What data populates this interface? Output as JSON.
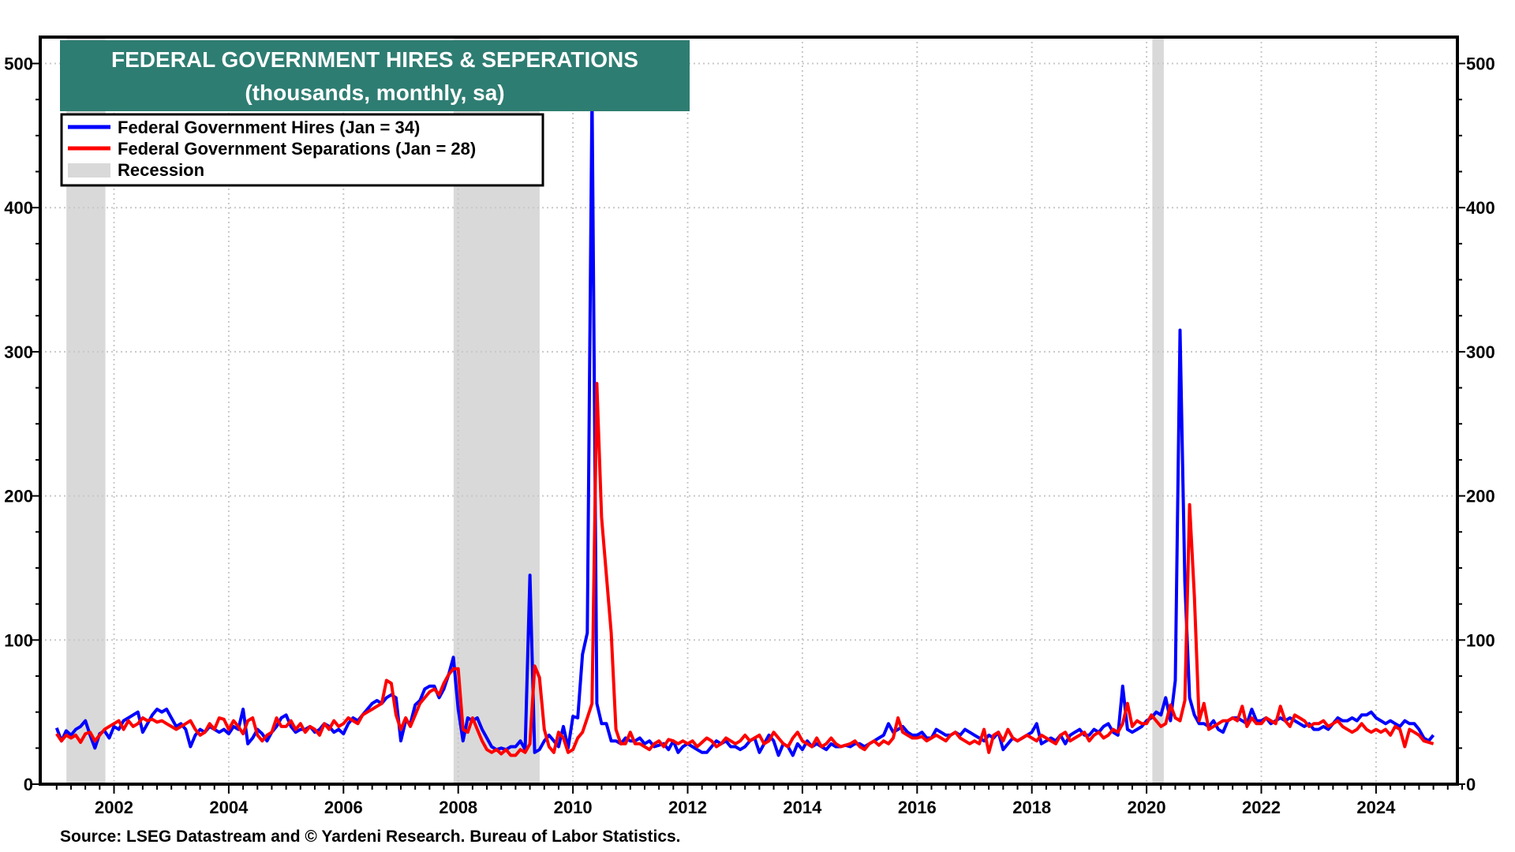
{
  "chart_data": {
    "type": "line",
    "title": "FEDERAL GOVERNMENT HIRES & SEPERATIONS",
    "subtitle": "(thousands, monthly, sa)",
    "source": "Source: LSEG Datastream and © Yardeni Research. Bureau of Labor Statistics.",
    "x_start": "2001-01",
    "frequency": "monthly",
    "ylim": [
      0,
      520
    ],
    "xlim": [
      2001,
      2025.6
    ],
    "y_ticks": [
      "0",
      "100",
      "200",
      "300",
      "400",
      "500"
    ],
    "y_tick_values": [
      0,
      100,
      200,
      300,
      400,
      500
    ],
    "x_ticks": [
      "2002",
      "2004",
      "2006",
      "2008",
      "2010",
      "2012",
      "2014",
      "2016",
      "2018",
      "2020",
      "2022",
      "2024"
    ],
    "x_tick_values": [
      2002,
      2004,
      2006,
      2008,
      2010,
      2012,
      2014,
      2016,
      2018,
      2020,
      2022,
      2024
    ],
    "grid": true,
    "legend_placement": "top-left",
    "recessions": [
      {
        "start": 2001.17,
        "end": 2001.85
      },
      {
        "start": 2007.92,
        "end": 2009.42
      },
      {
        "start": 2020.1,
        "end": 2020.3
      }
    ],
    "legend": {
      "hires": "Federal Government  Hires (Jan = 34)",
      "separations": "Federal Government Separations (Jan = 28)",
      "recession": "Recession"
    },
    "colors": {
      "hires": "#0000ff",
      "separations": "#ff0000",
      "recession": "#d9d9d9",
      "title_bg": "#2e7d72"
    },
    "series": [
      {
        "name": "Federal Government Hires",
        "key": "hires",
        "values": [
          39,
          30,
          37,
          34,
          38,
          40,
          44,
          34,
          25,
          35,
          37,
          32,
          40,
          38,
          44,
          46,
          48,
          50,
          36,
          42,
          48,
          52,
          50,
          52,
          46,
          40,
          42,
          38,
          26,
          34,
          38,
          36,
          40,
          38,
          36,
          38,
          35,
          40,
          38,
          52,
          28,
          32,
          38,
          35,
          30,
          36,
          40,
          46,
          48,
          40,
          36,
          38,
          38,
          40,
          36,
          38,
          42,
          40,
          36,
          38,
          35,
          42,
          46,
          44,
          48,
          52,
          56,
          58,
          56,
          60,
          62,
          60,
          30,
          44,
          42,
          55,
          58,
          66,
          68,
          68,
          60,
          66,
          76,
          88,
          52,
          30,
          46,
          44,
          46,
          38,
          32,
          26,
          24,
          25,
          24,
          26,
          26,
          30,
          24,
          145,
          22,
          24,
          30,
          34,
          30,
          26,
          40,
          25,
          47,
          46,
          90,
          105,
          480,
          56,
          42,
          42,
          30,
          30,
          28,
          32,
          30,
          30,
          32,
          28,
          30,
          26,
          27,
          28,
          24,
          30,
          22,
          26,
          28,
          26,
          24,
          22,
          22,
          26,
          30,
          28,
          30,
          26,
          26,
          24,
          26,
          30,
          32,
          22,
          28,
          34,
          30,
          20,
          28,
          26,
          20,
          28,
          24,
          30,
          26,
          28,
          26,
          24,
          28,
          26,
          26,
          27,
          26,
          28,
          28,
          26,
          28,
          30,
          32,
          34,
          42,
          36,
          38,
          40,
          36,
          34,
          34,
          36,
          32,
          32,
          38,
          36,
          34,
          34,
          36,
          34,
          38,
          36,
          34,
          32,
          30,
          34,
          32,
          36,
          24,
          28,
          32,
          30,
          32,
          34,
          36,
          42,
          28,
          30,
          32,
          30,
          34,
          28,
          34,
          36,
          38,
          34,
          34,
          38,
          36,
          40,
          42,
          36,
          34,
          68,
          38,
          36,
          38,
          40,
          44,
          46,
          50,
          48,
          60,
          44,
          72,
          315,
          140,
          60,
          48,
          42,
          42,
          40,
          44,
          38,
          36,
          44,
          46,
          46,
          44,
          42,
          52,
          44,
          44,
          46,
          42,
          44,
          46,
          44,
          46,
          44,
          42,
          40,
          42,
          38,
          38,
          40,
          38,
          42,
          46,
          44,
          44,
          46,
          44,
          48,
          48,
          50,
          46,
          44,
          42,
          44,
          42,
          40,
          44,
          42,
          42,
          38,
          32,
          30,
          34
        ]
      },
      {
        "name": "Federal Government Separations",
        "key": "separations",
        "values": [
          35,
          30,
          34,
          32,
          34,
          29,
          35,
          36,
          30,
          34,
          38,
          40,
          42,
          44,
          38,
          44,
          40,
          42,
          46,
          44,
          45,
          43,
          44,
          42,
          40,
          38,
          40,
          42,
          44,
          38,
          34,
          36,
          42,
          38,
          46,
          45,
          38,
          44,
          40,
          35,
          44,
          46,
          34,
          30,
          34,
          36,
          46,
          40,
          40,
          44,
          38,
          42,
          36,
          40,
          38,
          34,
          42,
          38,
          44,
          40,
          42,
          46,
          44,
          42,
          48,
          50,
          52,
          54,
          56,
          72,
          70,
          48,
          38,
          46,
          40,
          48,
          56,
          60,
          64,
          66,
          62,
          70,
          76,
          80,
          80,
          38,
          36,
          46,
          38,
          30,
          24,
          22,
          24,
          21,
          24,
          20,
          20,
          24,
          22,
          28,
          82,
          74,
          38,
          26,
          22,
          36,
          32,
          22,
          24,
          32,
          36,
          46,
          56,
          278,
          185,
          145,
          105,
          38,
          28,
          28,
          36,
          28,
          28,
          26,
          24,
          28,
          30,
          26,
          31,
          30,
          28,
          30,
          28,
          30,
          26,
          29,
          32,
          30,
          26,
          28,
          32,
          30,
          28,
          30,
          34,
          30,
          32,
          34,
          28,
          30,
          36,
          32,
          28,
          26,
          32,
          36,
          30,
          28,
          26,
          32,
          26,
          28,
          32,
          28,
          26,
          27,
          28,
          30,
          26,
          24,
          28,
          30,
          27,
          30,
          28,
          32,
          46,
          36,
          34,
          32,
          32,
          33,
          30,
          32,
          34,
          32,
          30,
          34,
          36,
          32,
          30,
          28,
          30,
          28,
          38,
          22,
          34,
          36,
          30,
          38,
          32,
          30,
          32,
          34,
          32,
          30,
          34,
          32,
          30,
          28,
          34,
          36,
          30,
          32,
          34,
          36,
          30,
          34,
          36,
          32,
          34,
          38,
          36,
          42,
          56,
          40,
          44,
          42,
          42,
          48,
          44,
          40,
          42,
          55,
          46,
          44,
          58,
          194,
          130,
          44,
          56,
          38,
          40,
          42,
          44,
          44,
          46,
          44,
          54,
          40,
          46,
          42,
          42,
          46,
          44,
          42,
          54,
          44,
          40,
          48,
          46,
          44,
          40,
          42,
          42,
          44,
          40,
          42,
          44,
          40,
          38,
          36,
          38,
          42,
          38,
          36,
          38,
          36,
          38,
          34,
          40,
          38,
          26,
          38,
          36,
          34,
          30,
          29,
          28
        ]
      }
    ]
  }
}
